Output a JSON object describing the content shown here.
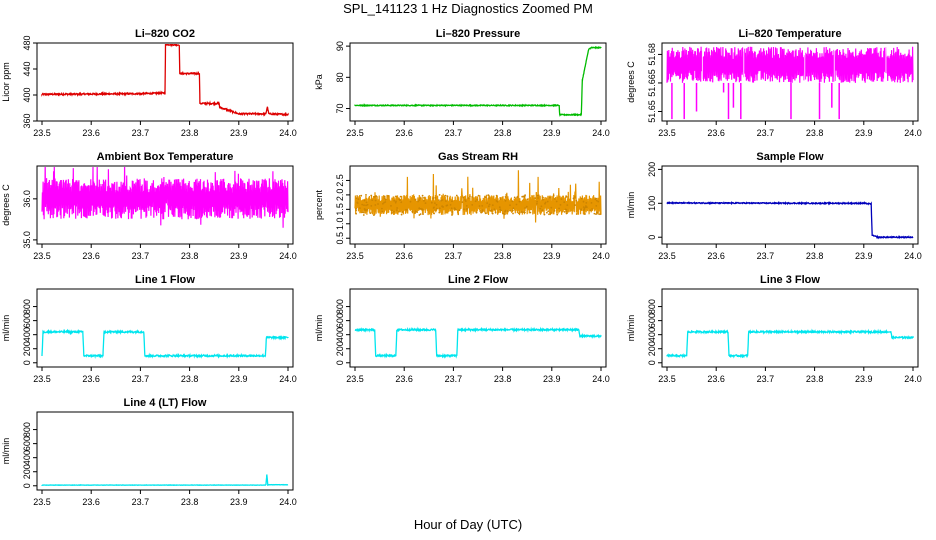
{
  "page": {
    "title": "SPL_141123  1 Hz Diagnostics Zoomed PM",
    "x_axis_title": "Hour of Day (UTC)"
  },
  "chart_data": [
    {
      "type": "line",
      "title": "Li–820 CO2",
      "ylabel": "Licor ppm",
      "xlim": [
        23.5,
        24.0
      ],
      "ylim": [
        360,
        480
      ],
      "xticks": [
        "23.5",
        "23.6",
        "23.7",
        "23.8",
        "23.9",
        "24.0"
      ],
      "yticks": [
        {
          "v": 360,
          "t": "360"
        },
        {
          "v": 400,
          "t": "400"
        },
        {
          "v": 440,
          "t": "440"
        },
        {
          "v": 480,
          "t": "480"
        }
      ],
      "color": "#dd0000",
      "series": [
        {
          "x": [
            23.5,
            23.7,
            23.75,
            23.751,
            23.779,
            23.78,
            23.82,
            23.821,
            23.86,
            23.861,
            23.87,
            23.9,
            23.955,
            23.958,
            23.961,
            24.0
          ],
          "y": [
            401,
            402,
            403,
            478,
            477,
            433,
            433,
            387,
            387,
            381,
            379,
            371,
            371,
            382,
            371,
            370
          ]
        }
      ],
      "noise": 1.2
    },
    {
      "type": "line",
      "title": "Li–820 Pressure",
      "ylabel": "kPa",
      "xlim": [
        23.5,
        24.0
      ],
      "ylim": [
        66,
        91
      ],
      "xticks": [
        "23.5",
        "23.6",
        "23.7",
        "23.8",
        "23.9",
        "24.0"
      ],
      "yticks": [
        {
          "v": 70,
          "t": "70"
        },
        {
          "v": 80,
          "t": "80"
        },
        {
          "v": 90,
          "t": "90"
        }
      ],
      "color": "#00bb00",
      "series": [
        {
          "x": [
            23.5,
            23.915,
            23.916,
            23.96,
            23.962,
            23.975,
            23.98,
            24.0
          ],
          "y": [
            71,
            71,
            68,
            68,
            79,
            89,
            89.5,
            89.5
          ]
        }
      ],
      "noise": 0.15
    },
    {
      "type": "line",
      "title": "Li–820 Temperature",
      "ylabel": "degrees C",
      "xlim": [
        23.5,
        24.0
      ],
      "ylim": [
        51.645,
        51.686
      ],
      "xticks": [
        "23.5",
        "23.6",
        "23.7",
        "23.8",
        "23.9",
        "24.0"
      ],
      "yticks": [
        {
          "v": 51.65,
          "t": "51.65"
        },
        {
          "v": 51.665,
          "t": "51.665"
        },
        {
          "v": 51.68,
          "t": "51.68"
        }
      ],
      "color": "#ff00ff",
      "series": [
        {
          "x": [
            23.5,
            24.0
          ],
          "y": [
            51.674,
            51.674
          ]
        }
      ],
      "band": [
        51.665,
        51.684
      ],
      "spikes": [
        {
          "x": 23.51,
          "to": 51.646
        },
        {
          "x": 23.535,
          "to": 51.646
        },
        {
          "x": 23.56,
          "to": 51.65
        },
        {
          "x": 23.615,
          "to": 51.66
        },
        {
          "x": 23.625,
          "to": 51.646
        },
        {
          "x": 23.635,
          "to": 51.652
        },
        {
          "x": 23.65,
          "to": 51.646
        },
        {
          "x": 23.752,
          "to": 51.646
        },
        {
          "x": 23.81,
          "to": 51.646
        },
        {
          "x": 23.835,
          "to": 51.652
        },
        {
          "x": 23.85,
          "to": 51.646
        }
      ],
      "gaps": [
        23.572,
        23.656,
        23.78,
        23.84,
        23.945
      ]
    },
    {
      "type": "line",
      "title": "Ambient Box Temperature",
      "ylabel": "degrees C",
      "xlim": [
        23.5,
        24.0
      ],
      "ylim": [
        34.9,
        36.8
      ],
      "xticks": [
        "23.5",
        "23.6",
        "23.7",
        "23.8",
        "23.9",
        "24.0"
      ],
      "yticks": [
        {
          "v": 35.0,
          "t": "35.0"
        },
        {
          "v": 36.0,
          "t": "36.0"
        }
      ],
      "color": "#ff00ff",
      "series": [
        {
          "x": [
            23.5,
            24.0
          ],
          "y": [
            35.95,
            35.9
          ]
        }
      ],
      "band": [
        35.5,
        36.5
      ],
      "noise": 0.35
    },
    {
      "type": "scatter",
      "title": "Gas Stream RH",
      "ylabel": "percent",
      "xlim": [
        23.5,
        24.0
      ],
      "ylim": [
        0.3,
        3.0
      ],
      "xticks": [
        "23.5",
        "23.6",
        "23.7",
        "23.8",
        "23.9",
        "24.0"
      ],
      "yticks": [
        {
          "v": 0.5,
          "t": "0.5"
        },
        {
          "v": 1.0,
          "t": "1.0"
        },
        {
          "v": 1.5,
          "t": "1.5"
        },
        {
          "v": 2.0,
          "t": "2.0"
        },
        {
          "v": 2.5,
          "t": "2.5"
        }
      ],
      "color": "#e69500",
      "series": [
        {
          "x": [
            23.5,
            24.0
          ],
          "y": [
            1.65,
            1.65
          ]
        }
      ],
      "band": [
        1.3,
        2.0
      ],
      "noise": 0.5
    },
    {
      "type": "line",
      "title": "Sample Flow",
      "ylabel": "ml/min",
      "xlim": [
        23.5,
        24.0
      ],
      "ylim": [
        -20,
        210
      ],
      "xticks": [
        "23.5",
        "23.6",
        "23.7",
        "23.8",
        "23.9",
        "24.0"
      ],
      "yticks": [
        {
          "v": 0,
          "t": "0"
        },
        {
          "v": 100,
          "t": "100"
        },
        {
          "v": 200,
          "t": "200"
        }
      ],
      "color": "#0000bb",
      "series": [
        {
          "x": [
            23.5,
            23.9,
            23.915,
            23.917,
            23.93,
            24.0
          ],
          "y": [
            101,
            100,
            98,
            5,
            0,
            0
          ]
        }
      ],
      "noise": 1.5
    },
    {
      "type": "line",
      "title": "Line 1 Flow",
      "ylabel": "ml/min",
      "xlim": [
        23.5,
        24.0
      ],
      "ylim": [
        -60,
        1050
      ],
      "xticks": [
        "23.5",
        "23.6",
        "23.7",
        "23.8",
        "23.9",
        "24.0"
      ],
      "yticks": [
        {
          "v": 0,
          "t": "0"
        },
        {
          "v": 200,
          "t": "200"
        },
        {
          "v": 400,
          "t": "400"
        },
        {
          "v": 600,
          "t": "600"
        },
        {
          "v": 800,
          "t": "800"
        }
      ],
      "color": "#00e5ee",
      "series": [
        {
          "x": [
            23.5,
            23.502,
            23.583,
            23.585,
            23.624,
            23.626,
            23.707,
            23.709,
            23.954,
            23.956,
            24.0
          ],
          "y": [
            100,
            440,
            440,
            100,
            100,
            440,
            440,
            100,
            100,
            360,
            360
          ]
        }
      ],
      "noise": 12
    },
    {
      "type": "line",
      "title": "Line 2 Flow",
      "ylabel": "ml/min",
      "xlim": [
        23.5,
        24.0
      ],
      "ylim": [
        -60,
        1050
      ],
      "xticks": [
        "23.5",
        "23.6",
        "23.7",
        "23.8",
        "23.9",
        "24.0"
      ],
      "yticks": [
        {
          "v": 0,
          "t": "0"
        },
        {
          "v": 200,
          "t": "200"
        },
        {
          "v": 400,
          "t": "400"
        },
        {
          "v": 600,
          "t": "600"
        },
        {
          "v": 800,
          "t": "800"
        }
      ],
      "color": "#00e5ee",
      "series": [
        {
          "x": [
            23.5,
            23.54,
            23.542,
            23.583,
            23.585,
            23.664,
            23.666,
            23.707,
            23.709,
            23.955,
            23.957,
            24.0
          ],
          "y": [
            470,
            470,
            100,
            100,
            470,
            470,
            100,
            100,
            470,
            470,
            380,
            380
          ]
        }
      ],
      "noise": 12
    },
    {
      "type": "line",
      "title": "Line 3 Flow",
      "ylabel": "ml/min",
      "xlim": [
        23.5,
        24.0
      ],
      "ylim": [
        -60,
        1050
      ],
      "xticks": [
        "23.5",
        "23.6",
        "23.7",
        "23.8",
        "23.9",
        "24.0"
      ],
      "yticks": [
        {
          "v": 0,
          "t": "0"
        },
        {
          "v": 200,
          "t": "200"
        },
        {
          "v": 400,
          "t": "400"
        },
        {
          "v": 600,
          "t": "600"
        },
        {
          "v": 800,
          "t": "800"
        }
      ],
      "color": "#00e5ee",
      "series": [
        {
          "x": [
            23.5,
            23.502,
            23.54,
            23.542,
            23.624,
            23.626,
            23.664,
            23.666,
            23.955,
            23.957,
            24.0
          ],
          "y": [
            100,
            100,
            100,
            440,
            440,
            100,
            100,
            440,
            440,
            360,
            360
          ]
        }
      ],
      "noise": 12
    },
    {
      "type": "line",
      "title": "Line 4 (LT) Flow",
      "ylabel": "ml/min",
      "xlim": [
        23.5,
        24.0
      ],
      "ylim": [
        -60,
        1050
      ],
      "xticks": [
        "23.5",
        "23.6",
        "23.7",
        "23.8",
        "23.9",
        "24.0"
      ],
      "yticks": [
        {
          "v": 0,
          "t": "0"
        },
        {
          "v": 200,
          "t": "200"
        },
        {
          "v": 400,
          "t": "400"
        },
        {
          "v": 600,
          "t": "600"
        },
        {
          "v": 800,
          "t": "800"
        }
      ],
      "color": "#00e5ee",
      "series": [
        {
          "x": [
            23.5,
            23.955,
            23.957,
            23.959,
            23.961,
            24.0
          ],
          "y": [
            10,
            10,
            160,
            10,
            15,
            15
          ]
        }
      ],
      "noise": 2
    }
  ]
}
